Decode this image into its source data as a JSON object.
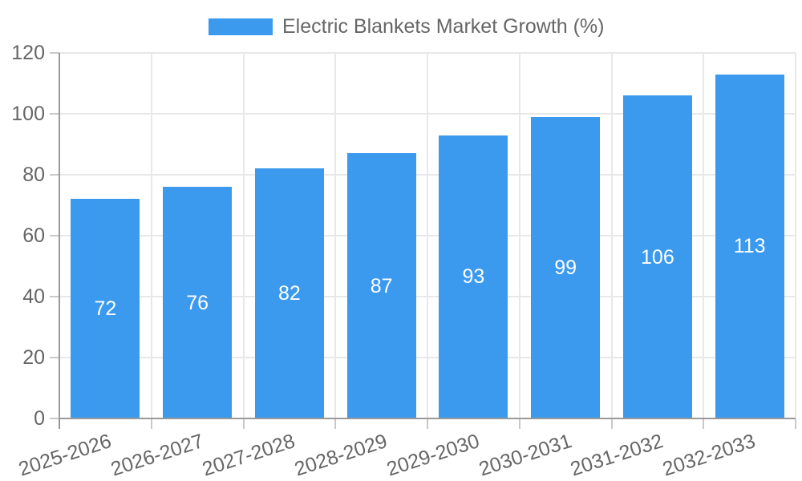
{
  "legend": {
    "label": "Electric Blankets Market Growth (%)"
  },
  "colors": {
    "bar": "#3B99EE",
    "bar_label": "#FFFFFF",
    "axis_text": "#666666",
    "grid": "#E8E8E8",
    "tick": "#C9C9C9",
    "axis_line": "#999999",
    "background": "#FFFFFF"
  },
  "chart_data": {
    "type": "bar",
    "title": "Electric Blankets Market Growth (%)",
    "series_name": "Electric Blankets Market Growth (%)",
    "categories": [
      "2025-2026",
      "2026-2027",
      "2027-2028",
      "2028-2029",
      "2029-2030",
      "2030-2031",
      "2031-2032",
      "2032-2033"
    ],
    "values": [
      72,
      76,
      82,
      87,
      93,
      99,
      106,
      113
    ],
    "xlabel": "",
    "ylabel": "",
    "ylim": [
      0,
      120
    ],
    "yticks": [
      0,
      20,
      40,
      60,
      80,
      100,
      120
    ],
    "grid": true,
    "legend_position": "top",
    "x_label_rotation_deg": -18,
    "value_labels": "inside-center-white"
  }
}
